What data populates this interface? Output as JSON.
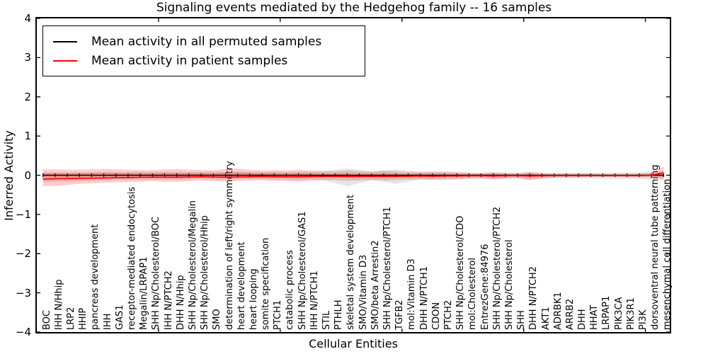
{
  "title": "Signaling events mediated by the Hedgehog family -- 16 samples",
  "legend": {
    "items": [
      {
        "label": "Mean activity in all permuted samples",
        "color": "#000000"
      },
      {
        "label": "Mean activity in patient samples",
        "color": "#ff0000"
      }
    ]
  },
  "axes": {
    "xlabel": "Cellular Entities",
    "ylabel": "Inferred Activity",
    "ylim": [
      -4,
      4
    ],
    "ytick_values": [
      4,
      3,
      2,
      1,
      0,
      -1,
      -2,
      -3,
      -4
    ],
    "ytick_labels": [
      "4",
      "3",
      "2",
      "1",
      "0",
      "−1",
      "−2",
      "−3",
      "−4"
    ],
    "xtick_values": [
      10,
      20,
      30,
      40,
      50
    ]
  },
  "colors": {
    "frame": "#000000",
    "permuted_line": "#000000",
    "patient_line": "#ff0000",
    "patient_band": "#ff0000",
    "permuted_band": "#888888",
    "background": "#ffffff"
  },
  "chart_data": {
    "type": "line",
    "title": "Signaling events mediated by the Hedgehog family -- 16 samples",
    "xlabel": "Cellular Entities",
    "ylabel": "Inferred Activity",
    "ylim": [
      -4,
      4
    ],
    "legend_position": "upper left",
    "categories": [
      "BOC",
      "IHH N/Hhip",
      "LRP2",
      "HHIP",
      "pancreas development",
      "IHH",
      "GAS1",
      "receptor-mediated endocytosis",
      "Megalin/LRPAP1",
      "SHH Np/Cholesterol/BOC",
      "IHH N/PTCH2",
      "DHH N/Hhip",
      "SHH Np/Cholesterol/Megalin",
      "SHH Np/Cholesterol/Hhip",
      "SMO",
      "determination of left/right symmetry",
      "heart development",
      "heart looping",
      "somite specification",
      "PTCH1",
      "catabolic process",
      "SHH Np/Cholesterol/GAS1",
      "IHH N/PTCH1",
      "STIL",
      "PTHLH",
      "skeletal system development",
      "SMO/Vitamin D3",
      "SMO/beta Arrestin2",
      "SHH Np/Cholesterol/PTCH1",
      "TGFB2",
      "mol:Vitamin D3",
      "DHH N/PTCH1",
      "CDON",
      "PTCH2",
      "SHH Np/Cholesterol/CDO",
      "mol:Cholesterol",
      "EntrezGene:84976",
      "SHH Np/Cholesterol/PTCH2",
      "SHH Np/Cholesterol",
      "SHH",
      "DHH N/PTCH2",
      "AKT1",
      "ADRBK1",
      "ARRB2",
      "DHH",
      "HHAT",
      "LRPAP1",
      "PIK3CA",
      "PIK3R1",
      "PI3K",
      "dorsoventral neural tube patterning",
      "mesenchymal cell differentiation"
    ],
    "series": [
      {
        "name": "Mean activity in all permuted samples",
        "color": "#000000",
        "marker": "vertical-dash",
        "values": [
          0,
          0,
          0,
          0,
          0,
          0,
          0,
          0,
          0,
          0,
          0,
          0,
          0,
          0,
          0,
          0,
          0,
          0,
          0,
          0,
          0,
          0,
          0,
          0,
          0,
          0,
          0,
          0,
          0,
          0,
          0,
          0,
          0,
          0,
          0,
          0,
          0,
          0,
          0,
          0,
          0,
          0,
          0,
          0,
          0,
          0,
          0,
          0,
          0,
          0,
          0,
          0
        ]
      },
      {
        "name": "Mean activity in patient samples",
        "color": "#ff0000",
        "marker": "none",
        "values": [
          -0.1,
          -0.09,
          -0.085,
          -0.08,
          -0.075,
          -0.07,
          -0.065,
          -0.06,
          -0.055,
          -0.05,
          -0.05,
          -0.05,
          -0.045,
          -0.04,
          -0.045,
          -0.05,
          -0.045,
          -0.04,
          -0.035,
          -0.04,
          -0.04,
          -0.04,
          -0.035,
          -0.03,
          -0.03,
          -0.035,
          -0.03,
          -0.03,
          -0.03,
          -0.03,
          -0.025,
          -0.02,
          -0.025,
          -0.02,
          -0.02,
          -0.015,
          -0.015,
          -0.02,
          -0.015,
          -0.01,
          -0.02,
          -0.015,
          -0.01,
          -0.01,
          -0.01,
          -0.01,
          -0.01,
          -0.01,
          -0.01,
          -0.01,
          0.0,
          0.06
        ]
      }
    ],
    "bands": [
      {
        "name": "permuted-samples-band",
        "color": "#888888",
        "opacity": 0.22,
        "upper": [
          0.06,
          0.06,
          0.06,
          0.07,
          0.07,
          0.08,
          0.07,
          0.07,
          0.08,
          0.08,
          0.08,
          0.07,
          0.08,
          0.08,
          0.09,
          0.08,
          0.09,
          0.08,
          0.08,
          0.09,
          0.08,
          0.09,
          0.09,
          0.1,
          0.14,
          0.17,
          0.14,
          0.1,
          0.12,
          0.15,
          0.12,
          0.09,
          0.09,
          0.1,
          0.09,
          0.07,
          0.06,
          0.07,
          0.06,
          0.06,
          0.07,
          0.06,
          0.06,
          0.06,
          0.06,
          0.06,
          0.06,
          0.07,
          0.07,
          0.08,
          0.09,
          0.1
        ],
        "lower": [
          -0.17,
          -0.17,
          -0.16,
          -0.15,
          -0.14,
          -0.13,
          -0.12,
          -0.12,
          -0.11,
          -0.11,
          -0.11,
          -0.11,
          -0.1,
          -0.1,
          -0.11,
          -0.11,
          -0.1,
          -0.1,
          -0.1,
          -0.11,
          -0.11,
          -0.12,
          -0.11,
          -0.12,
          -0.2,
          -0.28,
          -0.2,
          -0.13,
          -0.16,
          -0.22,
          -0.16,
          -0.12,
          -0.12,
          -0.13,
          -0.11,
          -0.1,
          -0.09,
          -0.11,
          -0.09,
          -0.08,
          -0.12,
          -0.09,
          -0.08,
          -0.08,
          -0.08,
          -0.07,
          -0.08,
          -0.08,
          -0.09,
          -0.1,
          -0.11,
          -0.12
        ]
      },
      {
        "name": "patient-samples-band-outer",
        "color": "#ff0000",
        "opacity": 0.2,
        "upper": [
          0.15,
          0.15,
          0.14,
          0.14,
          0.15,
          0.16,
          0.15,
          0.14,
          0.13,
          0.13,
          0.15,
          0.16,
          0.14,
          0.13,
          0.12,
          0.16,
          0.17,
          0.14,
          0.12,
          0.13,
          0.12,
          0.14,
          0.12,
          0.11,
          0.1,
          0.12,
          0.1,
          0.09,
          0.12,
          0.1,
          0.08,
          0.08,
          0.09,
          0.08,
          0.07,
          0.06,
          0.05,
          0.08,
          0.06,
          0.05,
          0.09,
          0.05,
          0.04,
          0.04,
          0.04,
          0.04,
          0.03,
          0.03,
          0.03,
          0.04,
          0.06,
          0.22
        ],
        "lower": [
          -0.28,
          -0.27,
          -0.25,
          -0.22,
          -0.2,
          -0.19,
          -0.18,
          -0.17,
          -0.16,
          -0.15,
          -0.16,
          -0.17,
          -0.15,
          -0.14,
          -0.15,
          -0.16,
          -0.15,
          -0.14,
          -0.13,
          -0.14,
          -0.15,
          -0.16,
          -0.14,
          -0.13,
          -0.12,
          -0.14,
          -0.13,
          -0.12,
          -0.13,
          -0.12,
          -0.11,
          -0.1,
          -0.11,
          -0.1,
          -0.09,
          -0.08,
          -0.07,
          -0.1,
          -0.08,
          -0.07,
          -0.12,
          -0.08,
          -0.06,
          -0.05,
          -0.05,
          -0.04,
          -0.04,
          -0.04,
          -0.04,
          -0.05,
          -0.06,
          -0.1
        ]
      },
      {
        "name": "patient-samples-band-inner",
        "color": "#ff0000",
        "opacity": 0.2,
        "upper": [
          0.068,
          0.068,
          0.063,
          0.063,
          0.068,
          0.072,
          0.068,
          0.063,
          0.059,
          0.059,
          0.068,
          0.072,
          0.063,
          0.059,
          0.054,
          0.072,
          0.077,
          0.063,
          0.054,
          0.059,
          0.054,
          0.063,
          0.054,
          0.05,
          0.045,
          0.054,
          0.045,
          0.041,
          0.054,
          0.045,
          0.036,
          0.036,
          0.041,
          0.036,
          0.032,
          0.027,
          0.023,
          0.036,
          0.027,
          0.023,
          0.041,
          0.023,
          0.018,
          0.018,
          0.018,
          0.018,
          0.014,
          0.014,
          0.014,
          0.018,
          0.027,
          0.099
        ],
        "lower": [
          -0.126,
          -0.122,
          -0.113,
          -0.099,
          -0.09,
          -0.086,
          -0.081,
          -0.077,
          -0.072,
          -0.068,
          -0.072,
          -0.077,
          -0.068,
          -0.063,
          -0.068,
          -0.072,
          -0.068,
          -0.063,
          -0.059,
          -0.063,
          -0.068,
          -0.072,
          -0.063,
          -0.059,
          -0.054,
          -0.063,
          -0.059,
          -0.054,
          -0.059,
          -0.054,
          -0.05,
          -0.045,
          -0.05,
          -0.045,
          -0.041,
          -0.036,
          -0.032,
          -0.045,
          -0.036,
          -0.032,
          -0.054,
          -0.036,
          -0.027,
          -0.023,
          -0.023,
          -0.018,
          -0.018,
          -0.018,
          -0.018,
          -0.023,
          -0.027,
          -0.045
        ]
      }
    ]
  }
}
